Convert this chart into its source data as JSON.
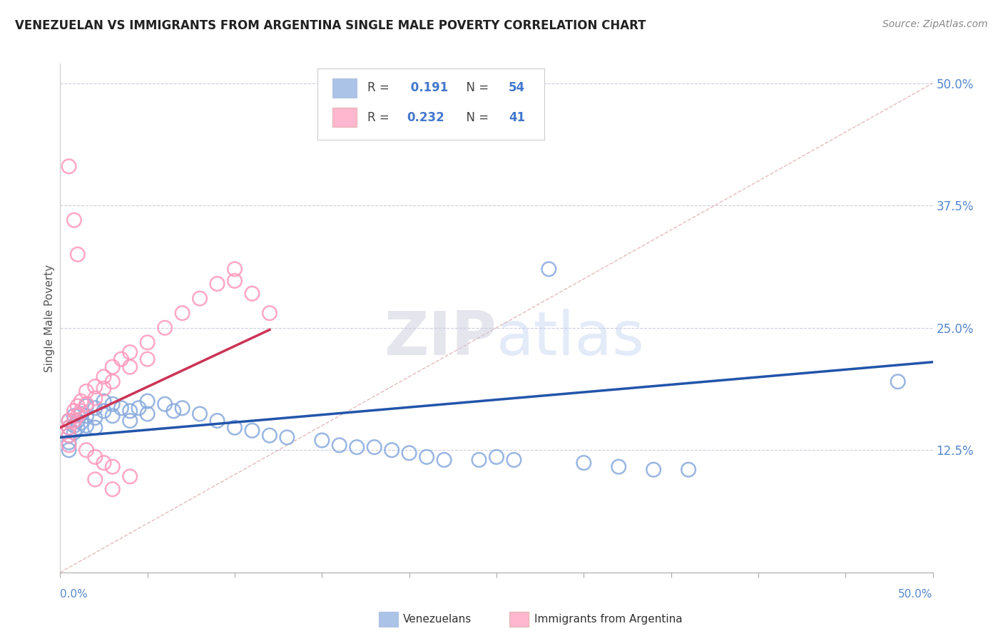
{
  "title": "VENEZUELAN VS IMMIGRANTS FROM ARGENTINA SINGLE MALE POVERTY CORRELATION CHART",
  "source": "Source: ZipAtlas.com",
  "ylabel": "Single Male Poverty",
  "y_ticks_right": [
    0.125,
    0.25,
    0.375,
    0.5
  ],
  "y_tick_labels_right": [
    "12.5%",
    "25.0%",
    "37.5%",
    "50.0%"
  ],
  "xlim": [
    0.0,
    0.5
  ],
  "ylim": [
    0.0,
    0.52
  ],
  "legend_R1": "0.191",
  "legend_N1": "54",
  "legend_R2": "0.232",
  "legend_N2": "41",
  "blue_color": "#88AADD",
  "pink_color": "#FF99BB",
  "line_blue": "#2255AA",
  "line_pink": "#CC3355",
  "diag_color": "#DDAAAA",
  "watermark_zip": "ZIP",
  "watermark_atlas": "atlas",
  "blue_scatter_x": [
    0.005,
    0.005,
    0.005,
    0.005,
    0.005,
    0.008,
    0.008,
    0.008,
    0.01,
    0.01,
    0.012,
    0.012,
    0.015,
    0.015,
    0.015,
    0.02,
    0.02,
    0.02,
    0.025,
    0.025,
    0.03,
    0.03,
    0.035,
    0.04,
    0.04,
    0.045,
    0.05,
    0.05,
    0.06,
    0.065,
    0.07,
    0.08,
    0.09,
    0.1,
    0.11,
    0.12,
    0.13,
    0.15,
    0.16,
    0.17,
    0.18,
    0.19,
    0.2,
    0.21,
    0.22,
    0.24,
    0.25,
    0.26,
    0.28,
    0.3,
    0.32,
    0.34,
    0.36,
    0.48
  ],
  "blue_scatter_y": [
    0.155,
    0.148,
    0.14,
    0.133,
    0.125,
    0.16,
    0.15,
    0.143,
    0.155,
    0.148,
    0.162,
    0.153,
    0.17,
    0.16,
    0.15,
    0.168,
    0.158,
    0.148,
    0.175,
    0.165,
    0.172,
    0.16,
    0.168,
    0.165,
    0.155,
    0.168,
    0.175,
    0.162,
    0.172,
    0.165,
    0.168,
    0.162,
    0.155,
    0.148,
    0.145,
    0.14,
    0.138,
    0.135,
    0.13,
    0.128,
    0.128,
    0.125,
    0.122,
    0.118,
    0.115,
    0.115,
    0.118,
    0.115,
    0.31,
    0.112,
    0.108,
    0.105,
    0.105,
    0.195
  ],
  "pink_scatter_x": [
    0.005,
    0.005,
    0.005,
    0.005,
    0.008,
    0.008,
    0.01,
    0.01,
    0.012,
    0.012,
    0.015,
    0.015,
    0.02,
    0.02,
    0.025,
    0.025,
    0.03,
    0.03,
    0.035,
    0.04,
    0.04,
    0.05,
    0.05,
    0.06,
    0.07,
    0.08,
    0.09,
    0.1,
    0.1,
    0.11,
    0.12,
    0.015,
    0.02,
    0.025,
    0.03,
    0.04,
    0.005,
    0.008,
    0.01,
    0.02,
    0.03
  ],
  "pink_scatter_y": [
    0.155,
    0.148,
    0.14,
    0.13,
    0.165,
    0.155,
    0.17,
    0.16,
    0.175,
    0.165,
    0.185,
    0.172,
    0.19,
    0.178,
    0.2,
    0.188,
    0.21,
    0.195,
    0.218,
    0.225,
    0.21,
    0.235,
    0.218,
    0.25,
    0.265,
    0.28,
    0.295,
    0.31,
    0.298,
    0.285,
    0.265,
    0.125,
    0.118,
    0.112,
    0.108,
    0.098,
    0.415,
    0.36,
    0.325,
    0.095,
    0.085
  ],
  "blue_line_x": [
    0.0,
    0.5
  ],
  "blue_line_y": [
    0.138,
    0.215
  ],
  "pink_line_x": [
    0.0,
    0.12
  ],
  "pink_line_y": [
    0.148,
    0.248
  ],
  "diag_line_x": [
    0.0,
    0.5
  ],
  "diag_line_y": [
    0.0,
    0.5
  ]
}
